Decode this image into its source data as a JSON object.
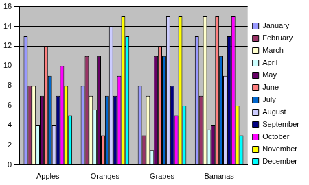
{
  "chart_data": {
    "type": "bar",
    "categories": [
      "Apples",
      "Oranges",
      "Grapes",
      "Bananas"
    ],
    "series": [
      {
        "name": "January",
        "color": "#9999FF",
        "values": [
          13,
          8,
          8,
          13
        ]
      },
      {
        "name": "February",
        "color": "#993366",
        "values": [
          8,
          11,
          3,
          7
        ]
      },
      {
        "name": "March",
        "color": "#FFFFCC",
        "values": [
          8,
          7,
          7,
          15
        ]
      },
      {
        "name": "April",
        "color": "#CCFFFF",
        "values": [
          4,
          5.6,
          1.5,
          3.6
        ]
      },
      {
        "name": "May",
        "color": "#660066",
        "values": [
          7,
          11,
          11,
          4
        ]
      },
      {
        "name": "June",
        "color": "#FF8080",
        "values": [
          12,
          3,
          12,
          15
        ]
      },
      {
        "name": "July",
        "color": "#0066CC",
        "values": [
          9,
          7,
          11,
          11
        ]
      },
      {
        "name": "August",
        "color": "#CCCCFF",
        "values": [
          4,
          14,
          15,
          9
        ]
      },
      {
        "name": "September",
        "color": "#000080",
        "values": [
          7,
          7,
          8,
          13
        ]
      },
      {
        "name": "October",
        "color": "#FF00FF",
        "values": [
          10,
          9,
          5,
          15
        ]
      },
      {
        "name": "November",
        "color": "#FFFF00",
        "values": [
          8,
          15,
          15,
          6
        ]
      },
      {
        "name": "December",
        "color": "#00FFFF",
        "values": [
          5,
          13,
          6,
          3
        ]
      }
    ],
    "ylim": [
      0,
      16
    ],
    "yticks": [
      0,
      2,
      4,
      6,
      8,
      10,
      12,
      14,
      16
    ],
    "grid": true,
    "legend": "right"
  }
}
